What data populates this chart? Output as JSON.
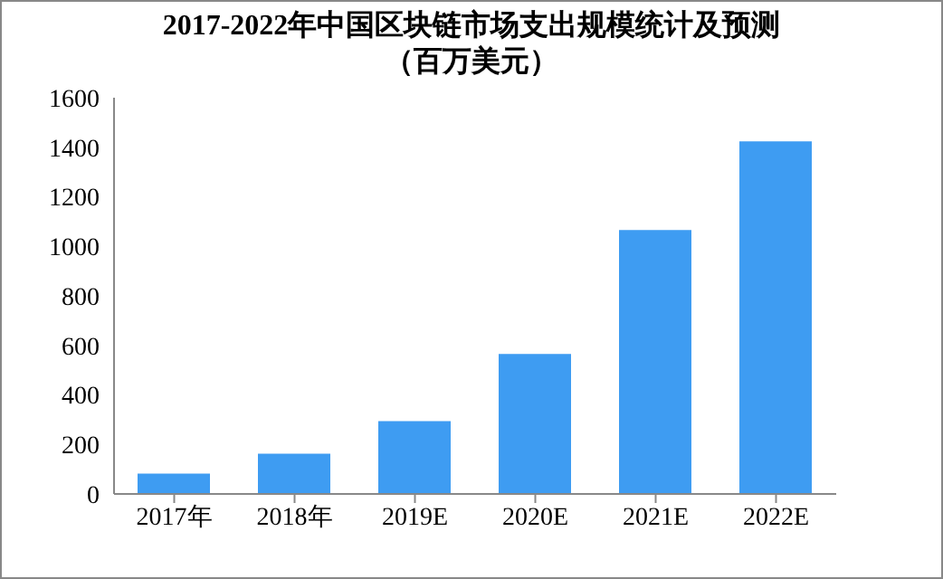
{
  "chart_data": {
    "type": "bar",
    "title": "2017-2022年中国区块链市场支出规模统计及预测",
    "subtitle": "（百万美元）",
    "categories": [
      "2017年",
      "2018年",
      "2019E",
      "2020E",
      "2021E",
      "2022E"
    ],
    "values": [
      82,
      163,
      294,
      565,
      1066,
      1424
    ],
    "color": "#3e9cf2",
    "ylim": [
      0,
      1600
    ],
    "yticks": [
      0,
      200,
      400,
      600,
      800,
      1000,
      1200,
      1400,
      1600
    ],
    "grid": false,
    "legend": false
  }
}
